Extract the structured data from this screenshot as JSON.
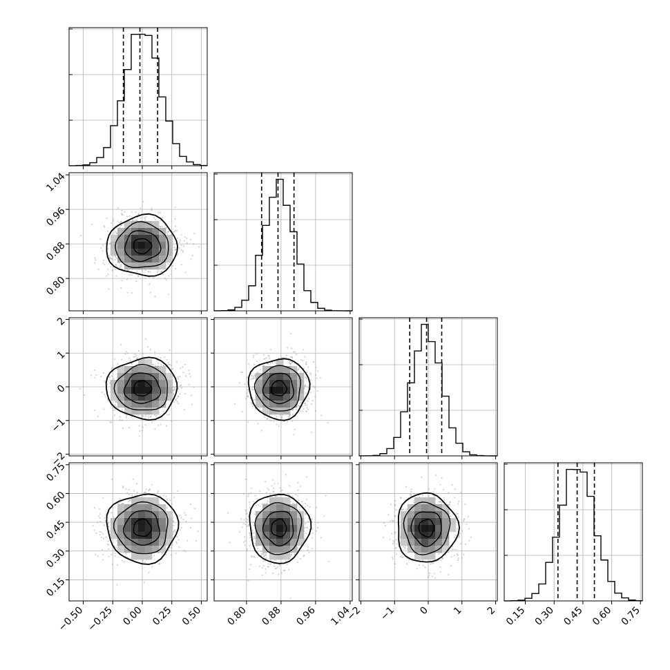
{
  "chart_data": {
    "type": "corner",
    "variables": [
      {
        "center": 0.0,
        "sigma": 0.15,
        "range": [
          -0.62,
          0.55
        ],
        "ticks": [
          -0.5,
          -0.25,
          0.0,
          0.25,
          0.5
        ],
        "tick_labels": [
          "−0.50",
          "−0.25",
          "0.00",
          "0.25",
          "0.50"
        ],
        "quantiles": [
          -0.16,
          -0.02,
          0.13
        ]
      },
      {
        "center": 0.875,
        "sigma": 0.035,
        "range": [
          0.725,
          1.045
        ],
        "ticks": [
          0.8,
          0.88,
          0.96,
          1.04
        ],
        "tick_labels": [
          "0.80",
          "0.88",
          "0.96",
          "1.04"
        ],
        "quantiles": [
          0.835,
          0.873,
          0.91
        ]
      },
      {
        "center": -0.05,
        "sigma": 0.45,
        "range": [
          -2.05,
          2.05
        ],
        "ticks": [
          -2,
          -1,
          0,
          1,
          2
        ],
        "tick_labels": [
          "−2",
          "−1",
          "0",
          "1",
          "2"
        ],
        "quantiles": [
          -0.55,
          -0.05,
          0.4
        ]
      },
      {
        "center": 0.42,
        "sigma": 0.09,
        "range": [
          0.04,
          0.76
        ],
        "ticks": [
          0.15,
          0.3,
          0.45,
          0.6,
          0.75
        ],
        "tick_labels": [
          "0.15",
          "0.30",
          "0.45",
          "0.60",
          "0.75"
        ],
        "quantiles": [
          0.32,
          0.42,
          0.51
        ]
      }
    ],
    "histogram_bins": 20,
    "contour_levels_sigma": [
      0.5,
      1.0,
      1.5,
      2.0
    ],
    "grid": true,
    "colors": {
      "line": "#000000",
      "grid": "#b0b0b0",
      "scatter": "#9a9a9a"
    }
  }
}
